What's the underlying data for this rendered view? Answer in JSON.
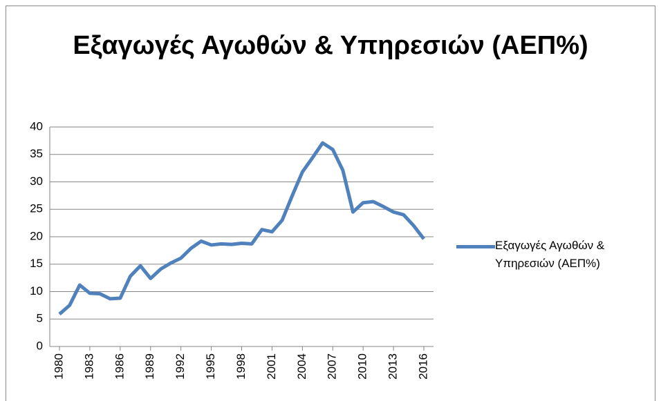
{
  "chart_data": {
    "type": "line",
    "title": "Εξαγωγές Αγωθών & Υπηρεσιών (ΑΕΠ%)",
    "x": [
      1980,
      1981,
      1982,
      1983,
      1984,
      1985,
      1986,
      1987,
      1988,
      1989,
      1990,
      1991,
      1992,
      1993,
      1994,
      1995,
      1996,
      1997,
      1998,
      1999,
      2000,
      2001,
      2002,
      2003,
      2004,
      2005,
      2006,
      2007,
      2008,
      2009,
      2010,
      2011,
      2012,
      2013,
      2014,
      2015,
      2016
    ],
    "series": [
      {
        "name": "Εξαγωγές Αγωθών & Υπηρεσιών (ΑΕΠ%)",
        "color": "#4f81bd",
        "values": [
          5.9,
          7.5,
          11.2,
          9.7,
          9.6,
          8.7,
          8.8,
          12.8,
          14.7,
          12.4,
          14.1,
          15.2,
          16.1,
          17.9,
          19.2,
          18.5,
          18.7,
          18.6,
          18.8,
          18.7,
          21.3,
          20.9,
          23.0,
          27.5,
          31.8,
          34.4,
          37.1,
          35.9,
          32.1,
          24.5,
          26.2,
          26.4,
          25.5,
          24.5,
          24.0,
          22.0,
          19.6
        ]
      }
    ],
    "xlim": [
      1980,
      2016
    ],
    "xticks": [
      1980,
      1983,
      1986,
      1989,
      1992,
      1995,
      1998,
      2001,
      2004,
      2007,
      2010,
      2013,
      2016
    ],
    "ylim": [
      0,
      40
    ],
    "yticks": [
      0,
      5,
      10,
      15,
      20,
      25,
      30,
      35,
      40
    ],
    "grid": true,
    "legend": "right"
  }
}
